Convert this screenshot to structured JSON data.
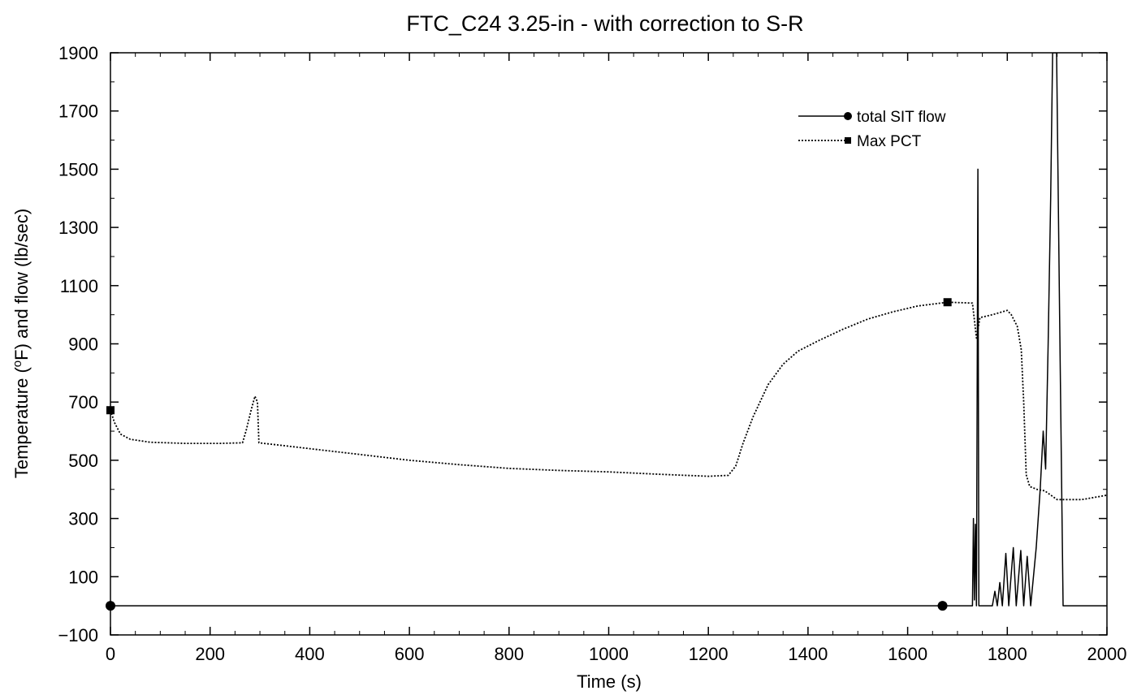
{
  "chart_data": {
    "type": "line",
    "title": "FTC_C24 3.25-in - with correction to S-R",
    "xlabel": "Time (s)",
    "ylabel_parts": [
      "Temperature (",
      "o",
      "F) and flow (lb/sec)"
    ],
    "xlim": [
      0,
      2000
    ],
    "ylim": [
      -100,
      1900
    ],
    "x_ticks": [
      0,
      200,
      400,
      600,
      800,
      1000,
      1200,
      1400,
      1600,
      1800,
      2000
    ],
    "y_ticks": [
      -100,
      100,
      300,
      500,
      700,
      900,
      1100,
      1300,
      1500,
      1700,
      1900
    ],
    "grid": false,
    "legend_position": "top-right",
    "series": [
      {
        "name": "total SIT flow",
        "style": "solid",
        "marker": "circle",
        "marker_points": [
          [
            0,
            0
          ],
          [
            1670,
            0
          ]
        ],
        "points": [
          [
            0,
            0
          ],
          [
            1730,
            0
          ],
          [
            1732,
            300
          ],
          [
            1734,
            20
          ],
          [
            1736,
            280
          ],
          [
            1738,
            0
          ],
          [
            1741,
            1500
          ],
          [
            1743,
            0
          ],
          [
            1770,
            0
          ],
          [
            1775,
            50
          ],
          [
            1780,
            0
          ],
          [
            1785,
            80
          ],
          [
            1790,
            0
          ],
          [
            1797,
            180
          ],
          [
            1803,
            0
          ],
          [
            1812,
            200
          ],
          [
            1818,
            0
          ],
          [
            1827,
            190
          ],
          [
            1833,
            0
          ],
          [
            1840,
            170
          ],
          [
            1847,
            0
          ],
          [
            1858,
            200
          ],
          [
            1866,
            400
          ],
          [
            1872,
            600
          ],
          [
            1877,
            470
          ],
          [
            1882,
            900
          ],
          [
            1887,
            1400
          ],
          [
            1891,
            1900
          ],
          [
            1899,
            1900
          ],
          [
            1905,
            1000
          ],
          [
            1912,
            0
          ],
          [
            2000,
            0
          ]
        ]
      },
      {
        "name": "Max PCT",
        "style": "dotted",
        "marker": "square",
        "marker_points": [
          [
            0,
            672
          ],
          [
            1680,
            1043
          ]
        ],
        "points": [
          [
            0,
            672
          ],
          [
            8,
            630
          ],
          [
            20,
            590
          ],
          [
            40,
            572
          ],
          [
            80,
            562
          ],
          [
            150,
            558
          ],
          [
            220,
            558
          ],
          [
            265,
            560
          ],
          [
            272,
            600
          ],
          [
            282,
            670
          ],
          [
            290,
            720
          ],
          [
            295,
            700
          ],
          [
            298,
            560
          ],
          [
            350,
            550
          ],
          [
            400,
            540
          ],
          [
            500,
            520
          ],
          [
            600,
            500
          ],
          [
            700,
            485
          ],
          [
            800,
            472
          ],
          [
            900,
            465
          ],
          [
            1000,
            460
          ],
          [
            1100,
            452
          ],
          [
            1200,
            445
          ],
          [
            1240,
            448
          ],
          [
            1255,
            480
          ],
          [
            1270,
            560
          ],
          [
            1290,
            650
          ],
          [
            1320,
            760
          ],
          [
            1350,
            830
          ],
          [
            1380,
            875
          ],
          [
            1420,
            910
          ],
          [
            1470,
            950
          ],
          [
            1520,
            985
          ],
          [
            1570,
            1010
          ],
          [
            1620,
            1030
          ],
          [
            1680,
            1043
          ],
          [
            1730,
            1040
          ],
          [
            1738,
            920
          ],
          [
            1745,
            990
          ],
          [
            1770,
            1000
          ],
          [
            1800,
            1015
          ],
          [
            1808,
            1000
          ],
          [
            1820,
            960
          ],
          [
            1828,
            880
          ],
          [
            1833,
            700
          ],
          [
            1838,
            450
          ],
          [
            1845,
            410
          ],
          [
            1860,
            400
          ],
          [
            1875,
            395
          ],
          [
            1900,
            365
          ],
          [
            1950,
            365
          ],
          [
            2000,
            380
          ]
        ]
      }
    ]
  }
}
